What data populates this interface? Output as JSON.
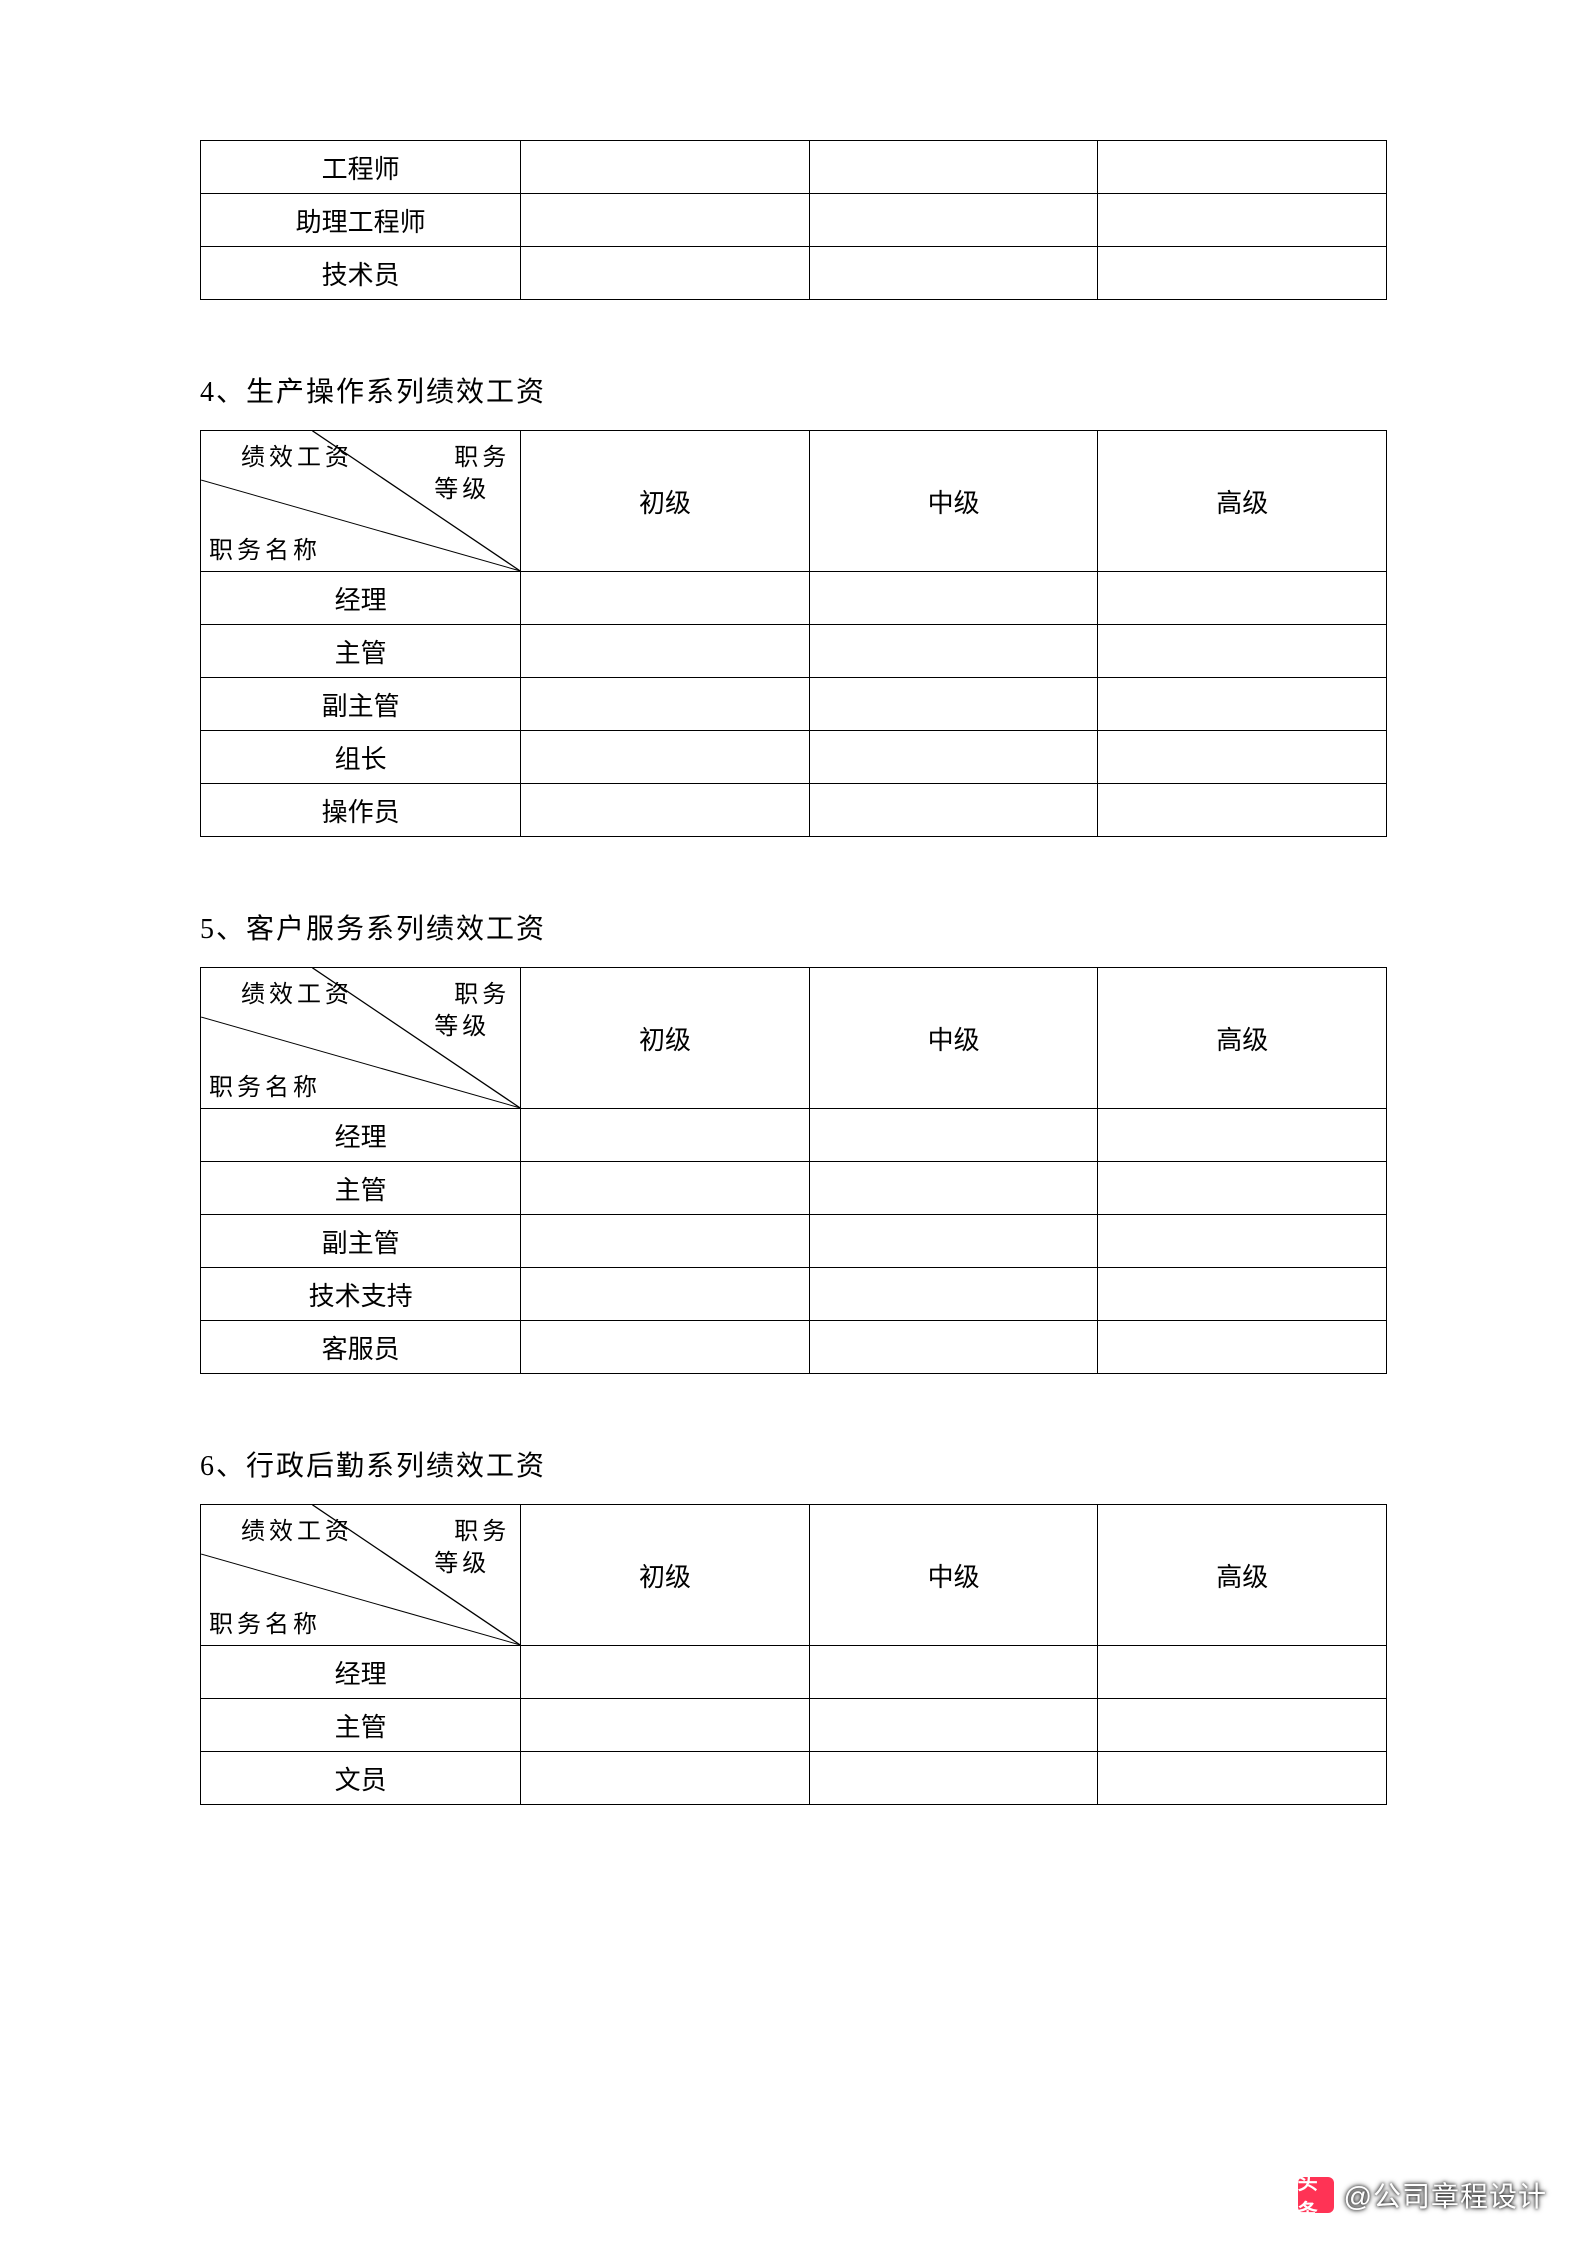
{
  "colors": {
    "background": "#ffffff",
    "text": "#000000",
    "border": "#000000",
    "watermark_bg": "#ff3355",
    "watermark_text": "#ffffff"
  },
  "typography": {
    "body_font": "SimSun",
    "body_size_pt": 20,
    "title_size_pt": 21
  },
  "diag_header": {
    "top_left": "绩效工资",
    "right_top": "职务",
    "right_bottom": "等级",
    "bottom_left": "职务名称"
  },
  "levels": [
    "初级",
    "中级",
    "高级"
  ],
  "top_table": {
    "type": "table",
    "columns_count": 4,
    "rows": [
      {
        "name": "工程师",
        "cells": [
          "",
          "",
          ""
        ]
      },
      {
        "name": "助理工程师",
        "cells": [
          "",
          "",
          ""
        ]
      },
      {
        "name": "技术员",
        "cells": [
          "",
          "",
          ""
        ]
      }
    ]
  },
  "sections": [
    {
      "number": "4、",
      "title": "生产操作系列绩效工资",
      "rows": [
        {
          "name": "经理",
          "cells": [
            "",
            "",
            ""
          ]
        },
        {
          "name": "主管",
          "cells": [
            "",
            "",
            ""
          ]
        },
        {
          "name": "副主管",
          "cells": [
            "",
            "",
            ""
          ]
        },
        {
          "name": "组长",
          "cells": [
            "",
            "",
            ""
          ]
        },
        {
          "name": "操作员",
          "cells": [
            "",
            "",
            ""
          ]
        }
      ]
    },
    {
      "number": "5、",
      "title": "客户服务系列绩效工资",
      "rows": [
        {
          "name": "经理",
          "cells": [
            "",
            "",
            ""
          ]
        },
        {
          "name": "主管",
          "cells": [
            "",
            "",
            ""
          ]
        },
        {
          "name": "副主管",
          "cells": [
            "",
            "",
            ""
          ]
        },
        {
          "name": "技术支持",
          "cells": [
            "",
            "",
            ""
          ]
        },
        {
          "name": "客服员",
          "cells": [
            "",
            "",
            ""
          ]
        }
      ]
    },
    {
      "number": "6、",
      "title": "行政后勤系列绩效工资",
      "rows": [
        {
          "name": "经理",
          "cells": [
            "",
            "",
            ""
          ]
        },
        {
          "name": "主管",
          "cells": [
            "",
            "",
            ""
          ]
        },
        {
          "name": "文员",
          "cells": [
            "",
            "",
            ""
          ]
        }
      ]
    }
  ],
  "watermark": {
    "prefix": "头条",
    "text": "@公司章程设计"
  }
}
